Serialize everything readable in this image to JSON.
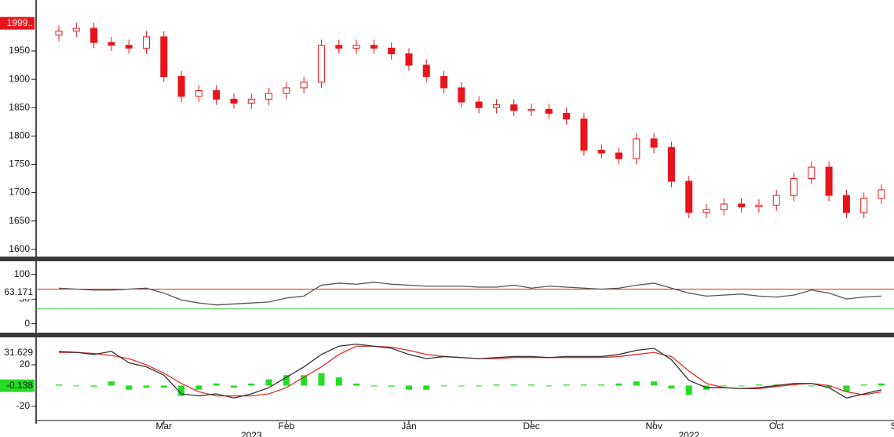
{
  "chart_data": [
    {
      "type": "candlestick",
      "color": "#e8141b",
      "open": [
        1978,
        1985,
        1990,
        1965,
        1960,
        1955,
        1975,
        1905,
        1870,
        1880,
        1865,
        1858,
        1865,
        1875,
        1885,
        1895,
        1960,
        1955,
        1960,
        1955,
        1945,
        1925,
        1905,
        1885,
        1860,
        1850,
        1855,
        1845,
        1847,
        1840,
        1830,
        1775,
        1770,
        1760,
        1795,
        1780,
        1720,
        1665,
        1670,
        1680,
        1675,
        1678,
        1695,
        1725,
        1745,
        1695,
        1665,
        1690
      ],
      "high": [
        1995,
        2000,
        2000,
        1975,
        1970,
        1985,
        1985,
        1915,
        1890,
        1890,
        1875,
        1875,
        1885,
        1895,
        1905,
        1970,
        1970,
        1970,
        1970,
        1965,
        1955,
        1935,
        1915,
        1895,
        1870,
        1865,
        1865,
        1857,
        1857,
        1850,
        1840,
        1785,
        1780,
        1805,
        1805,
        1790,
        1730,
        1680,
        1690,
        1690,
        1688,
        1705,
        1735,
        1755,
        1755,
        1705,
        1700,
        1715
      ],
      "low": [
        1968,
        1975,
        1955,
        1950,
        1945,
        1945,
        1895,
        1860,
        1860,
        1855,
        1848,
        1848,
        1855,
        1865,
        1875,
        1885,
        1945,
        1945,
        1945,
        1935,
        1915,
        1895,
        1875,
        1850,
        1840,
        1840,
        1835,
        1835,
        1830,
        1820,
        1765,
        1760,
        1750,
        1750,
        1770,
        1710,
        1655,
        1655,
        1660,
        1665,
        1665,
        1668,
        1685,
        1715,
        1685,
        1655,
        1655,
        1680
      ],
      "close": [
        1985,
        1990,
        1965,
        1960,
        1955,
        1975,
        1905,
        1870,
        1880,
        1865,
        1858,
        1865,
        1875,
        1885,
        1895,
        1960,
        1955,
        1960,
        1955,
        1945,
        1925,
        1905,
        1885,
        1860,
        1850,
        1855,
        1845,
        1847,
        1840,
        1830,
        1775,
        1770,
        1760,
        1795,
        1780,
        1720,
        1665,
        1670,
        1680,
        1675,
        1678,
        1695,
        1725,
        1745,
        1695,
        1665,
        1690,
        1705
      ],
      "xlim": [
        0,
        47
      ],
      "ylim": [
        1590,
        2040
      ],
      "yticks": [
        1600,
        1650,
        1700,
        1750,
        1800,
        1850,
        1900,
        1950
      ],
      "last_price": {
        "value": 1999,
        "label": "1999.."
      },
      "xticks": [
        {
          "value": 6,
          "label": "Mar"
        },
        {
          "value": 13,
          "label": "Feb"
        },
        {
          "value": 20,
          "label": "Jan"
        },
        {
          "value": 27,
          "label": "Dec"
        },
        {
          "value": 34,
          "label": "Nov"
        },
        {
          "value": 41,
          "label": "Oct"
        },
        {
          "value": 48,
          "label": "Sep"
        }
      ],
      "year_labels": [
        {
          "value": 11,
          "label": "2023"
        },
        {
          "value": 36,
          "label": "2022"
        }
      ]
    },
    {
      "type": "line",
      "color": "#555555",
      "xlim": [
        0,
        47
      ],
      "values": [
        72,
        70,
        68,
        68,
        70,
        72,
        62,
        48,
        42,
        38,
        40,
        42,
        44,
        52,
        56,
        78,
        82,
        80,
        84,
        80,
        78,
        76,
        76,
        76,
        74,
        74,
        78,
        72,
        76,
        74,
        72,
        70,
        72,
        78,
        82,
        72,
        62,
        56,
        58,
        60,
        56,
        54,
        58,
        68,
        62,
        50,
        54,
        56
      ],
      "hlines": [
        {
          "value": 70,
          "color": "#d9262b"
        },
        {
          "value": 30,
          "color": "#2fcf2f"
        }
      ],
      "ylim": [
        -18,
        120
      ],
      "yticks": [
        0,
        50,
        100
      ],
      "last_value": 63.171
    },
    {
      "type": "macd",
      "xlim": [
        0,
        47
      ],
      "ylim": [
        -33,
        45
      ],
      "yticks": [
        -20,
        20
      ],
      "macd": {
        "color": "#333333",
        "values": [
          33,
          32,
          30,
          33,
          22,
          18,
          10,
          -8,
          -10,
          -8,
          -12,
          -8,
          -2,
          8,
          18,
          30,
          38,
          40,
          38,
          36,
          30,
          26,
          28,
          27,
          26,
          27,
          28,
          28,
          27,
          28,
          28,
          28,
          30,
          34,
          36,
          25,
          5,
          -2,
          -2,
          -3,
          -2,
          0,
          2,
          2,
          -2,
          -12,
          -8,
          -4
        ]
      },
      "signal": {
        "color": "#e0302f",
        "values": [
          32,
          32,
          31,
          29,
          26,
          20,
          12,
          2,
          -6,
          -10,
          -10,
          -10,
          -8,
          -2,
          8,
          18,
          30,
          38,
          38,
          37,
          34,
          30,
          28,
          27,
          26,
          26,
          27,
          27,
          27,
          27,
          27,
          27,
          28,
          30,
          32,
          28,
          14,
          2,
          -2,
          -3,
          -3,
          -1,
          1,
          2,
          0,
          -6,
          -9,
          -6
        ]
      },
      "histogram": {
        "color": "#22dd22",
        "values": [
          1,
          0,
          -1,
          4,
          -4,
          -2,
          -2,
          -10,
          -4,
          2,
          -2,
          2,
          6,
          10,
          10,
          12,
          8,
          2,
          0,
          -1,
          -4,
          -4,
          0,
          0,
          0,
          1,
          1,
          1,
          0,
          1,
          1,
          1,
          2,
          4,
          4,
          -3,
          -9,
          -4,
          0,
          0,
          1,
          1,
          1,
          0,
          -2,
          -6,
          1,
          2
        ]
      },
      "tags": [
        31.629,
        -0.138
      ]
    }
  ]
}
